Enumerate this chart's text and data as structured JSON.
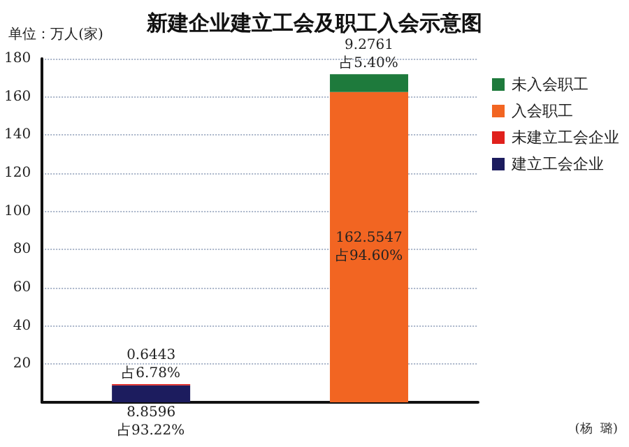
{
  "chart_data": {
    "type": "bar",
    "title": "新建企业建立工会及职工入会示意图",
    "ylabel": "单位：万人(家)",
    "categories": [
      null,
      null
    ],
    "stacked": true,
    "series": [
      {
        "name": "建立工会企业",
        "color": "#1c1c5e",
        "values": [
          8.8596,
          null
        ],
        "value_labels": [
          "8.8596\n占93.22%",
          null
        ]
      },
      {
        "name": "未建立工会企业",
        "color": "#e0201c",
        "values": [
          0.6443,
          null
        ],
        "value_labels": [
          "0.6443\n占6.78%",
          null
        ]
      },
      {
        "name": "入会职工",
        "color": "#f26522",
        "values": [
          null,
          162.5547
        ],
        "value_labels": [
          null,
          "162.5547\n占94.60%"
        ]
      },
      {
        "name": "未入会职工",
        "color": "#1e7a3c",
        "values": [
          null,
          9.2761
        ],
        "value_labels": [
          null,
          "9.2761\n占5.40%"
        ]
      }
    ],
    "ylim": [
      0,
      180
    ],
    "yticks": [
      {
        "value": 0,
        "label": null
      },
      20,
      40,
      60,
      80,
      100,
      120,
      140,
      160,
      180
    ],
    "grid": "y",
    "legend": "right",
    "annotations": [
      "(杨  璐)"
    ]
  }
}
